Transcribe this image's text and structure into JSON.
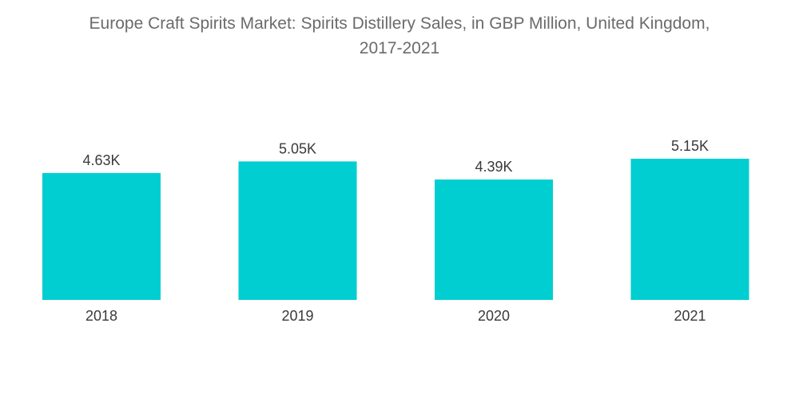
{
  "header": {
    "title_line1": "Europe Craft Spirits Market: Spirits Distillery Sales, in GBP Million, United Kingdom,",
    "title_line2": "2017-2021"
  },
  "chart_data": {
    "type": "bar",
    "title": "Europe Craft Spirits Market: Spirits Distillery Sales, in GBP Million, United Kingdom, 2017-2021",
    "categories": [
      "2018",
      "2019",
      "2020",
      "2021"
    ],
    "values": [
      4630,
      5050,
      4390,
      5150
    ],
    "data_labels": [
      "4.63K",
      "5.05K",
      "4.39K",
      "5.15K"
    ],
    "xlabel": "",
    "ylabel": "",
    "ylim": [
      0,
      5150
    ],
    "grid": false,
    "legend": "none",
    "bar_color": "#00CED1"
  }
}
